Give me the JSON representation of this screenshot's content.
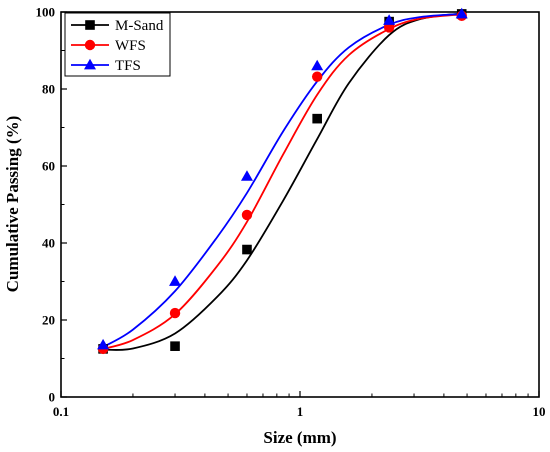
{
  "chart_data": {
    "type": "scatter",
    "xlabel": "Size (mm)",
    "ylabel": "Cumulative Passing (%)",
    "xscale": "log",
    "xlim": [
      0.1,
      10
    ],
    "ylim": [
      0,
      100
    ],
    "xticks": [
      0.1,
      1,
      10
    ],
    "xtick_labels": [
      "0.1",
      "1",
      "10"
    ],
    "yticks": [
      0,
      20,
      40,
      60,
      80,
      100
    ],
    "ytick_labels": [
      "0",
      "20",
      "40",
      "60",
      "80",
      "100"
    ],
    "grid": false,
    "legend_position": "top-left",
    "series": [
      {
        "name": "M-Sand",
        "color": "#000000",
        "marker": "square",
        "x": [
          0.15,
          0.3,
          0.6,
          1.18,
          2.36,
          4.75
        ],
        "y": [
          12.5,
          13.2,
          38.3,
          72.3,
          97.5,
          99.5
        ],
        "fit": [
          [
            0.15,
            12.3
          ],
          [
            0.2,
            12.6
          ],
          [
            0.3,
            16.5
          ],
          [
            0.45,
            26.0
          ],
          [
            0.6,
            35.5
          ],
          [
            0.85,
            51.0
          ],
          [
            1.18,
            67.0
          ],
          [
            1.6,
            81.5
          ],
          [
            2.36,
            94.0
          ],
          [
            3.2,
            98.2
          ],
          [
            4.75,
            99.6
          ]
        ]
      },
      {
        "name": "WFS",
        "color": "#ff0000",
        "marker": "circle",
        "x": [
          0.15,
          0.3,
          0.6,
          1.18,
          2.36,
          4.75
        ],
        "y": [
          12.5,
          21.8,
          47.3,
          83.2,
          96.0,
          99.0
        ],
        "fit": [
          [
            0.15,
            12.5
          ],
          [
            0.2,
            14.8
          ],
          [
            0.3,
            21.5
          ],
          [
            0.45,
            34.0
          ],
          [
            0.6,
            45.5
          ],
          [
            0.85,
            63.0
          ],
          [
            1.18,
            78.5
          ],
          [
            1.6,
            88.8
          ],
          [
            2.36,
            95.6
          ],
          [
            3.2,
            98.3
          ],
          [
            4.75,
            99.4
          ]
        ]
      },
      {
        "name": "TFS",
        "color": "#0000ff",
        "marker": "triangle",
        "x": [
          0.15,
          0.3,
          0.6,
          1.18,
          2.36,
          4.75
        ],
        "y": [
          13.5,
          30.0,
          57.3,
          86.0,
          97.8,
          99.5
        ],
        "fit": [
          [
            0.15,
            13.0
          ],
          [
            0.2,
            17.5
          ],
          [
            0.3,
            27.5
          ],
          [
            0.45,
            41.5
          ],
          [
            0.6,
            53.0
          ],
          [
            0.85,
            69.0
          ],
          [
            1.18,
            82.0
          ],
          [
            1.6,
            90.8
          ],
          [
            2.36,
            96.7
          ],
          [
            3.2,
            98.7
          ],
          [
            4.75,
            99.5
          ]
        ]
      }
    ]
  }
}
